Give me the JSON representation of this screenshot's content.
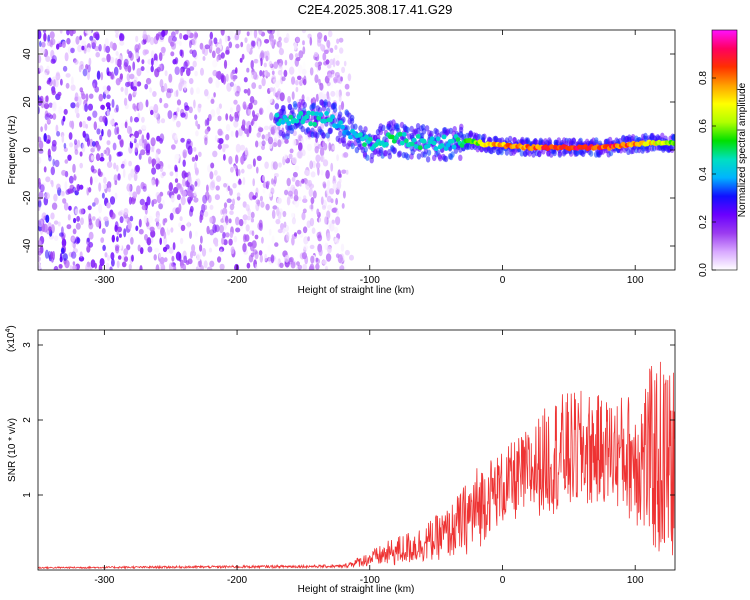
{
  "title": "C2E4.2025.308.17.41.G29",
  "chart_data": [
    {
      "type": "heatmap",
      "xlabel": "Height of straight line (km)",
      "ylabel": "Frequency (Hz)",
      "xlim": [
        -350,
        130
      ],
      "ylim": [
        -50,
        50
      ],
      "xticks": [
        -300,
        -200,
        -100,
        0,
        100
      ],
      "yticks": [
        -40,
        -20,
        0,
        20,
        40
      ],
      "colorbar": {
        "label": "Normalized spectral amplitude",
        "range": [
          0,
          1
        ],
        "ticks": [
          "0.0",
          "0.2",
          "0.4",
          "0.6",
          "0.8"
        ],
        "colors": [
          "#ffffff",
          "#d8a8ff",
          "#9b3cf0",
          "#6a00ff",
          "#1010ff",
          "#00b4ff",
          "#00e0c0",
          "#00e000",
          "#b0ff00",
          "#ffff00",
          "#ffa000",
          "#ff3000",
          "#ff0060",
          "#ff10ff"
        ]
      },
      "noise_region": {
        "x_range": [
          -350,
          -125
        ],
        "y_range": [
          -50,
          50
        ],
        "amplitude_range": [
          0.0,
          0.3
        ]
      },
      "signal_trace": {
        "x": [
          -170,
          -150,
          -130,
          -115,
          -100,
          -80,
          -60,
          -40,
          -25,
          -10,
          0,
          20,
          40,
          60,
          80,
          90,
          110,
          130
        ],
        "frequency": [
          12,
          13,
          13,
          8,
          2,
          5,
          3,
          3,
          4,
          2,
          2,
          1,
          1,
          1,
          1,
          2,
          3,
          3
        ],
        "amplitude": [
          0.45,
          0.5,
          0.45,
          0.4,
          0.5,
          0.5,
          0.5,
          0.45,
          0.55,
          0.75,
          0.8,
          0.85,
          0.9,
          0.9,
          0.9,
          0.85,
          0.75,
          0.6
        ]
      }
    },
    {
      "type": "line",
      "xlabel": "Height of straight line (km)",
      "ylabel": "SNR (10 * v/v)",
      "y_multiplier": "(x10",
      "y_exponent": "4",
      "xlim": [
        -350,
        130
      ],
      "ylim": [
        0,
        3.2
      ],
      "xticks": [
        -300,
        -200,
        -100,
        0,
        100
      ],
      "yticks": [
        1,
        2,
        3
      ],
      "line_color": "#ee3333",
      "series": [
        {
          "name": "SNR",
          "envelope_x": [
            -350,
            -120,
            -100,
            -80,
            -60,
            -40,
            -30,
            -20,
            -10,
            0,
            20,
            40,
            60,
            80,
            100,
            110,
            120,
            130
          ],
          "mean": [
            0.03,
            0.05,
            0.15,
            0.25,
            0.35,
            0.5,
            0.65,
            0.8,
            1.0,
            1.1,
            1.3,
            1.55,
            1.6,
            1.6,
            1.5,
            1.5,
            1.45,
            1.4
          ],
          "spread": [
            0.01,
            0.02,
            0.1,
            0.2,
            0.25,
            0.35,
            0.45,
            0.6,
            0.5,
            0.5,
            0.6,
            0.8,
            0.8,
            0.7,
            0.9,
            1.2,
            1.4,
            1.3
          ]
        }
      ]
    }
  ]
}
